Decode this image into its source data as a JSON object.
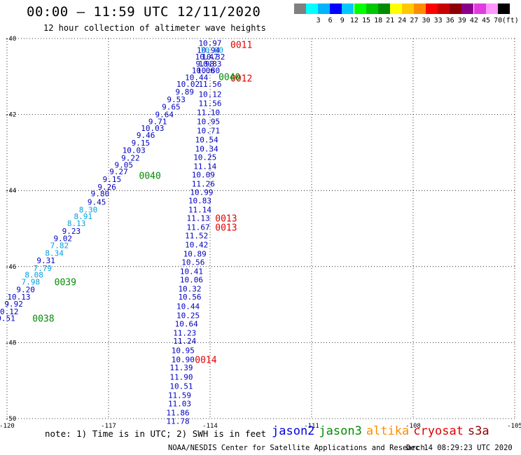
{
  "header": {
    "title": "00:00 – 11:59 UTC 12/11/2020",
    "subtitle": "12 hour collection of altimeter wave heights"
  },
  "color_scale": {
    "unit_label": "(ft)",
    "bins": [
      {
        "label": "",
        "color": "#808080"
      },
      {
        "label": "3",
        "color": "#00ffff"
      },
      {
        "label": "6",
        "color": "#00b4ff"
      },
      {
        "label": "9",
        "color": "#0000ff"
      },
      {
        "label": "12",
        "color": "#00c8ff"
      },
      {
        "label": "15",
        "color": "#00ff00"
      },
      {
        "label": "18",
        "color": "#00c800"
      },
      {
        "label": "21",
        "color": "#008c00"
      },
      {
        "label": "24",
        "color": "#ffff00"
      },
      {
        "label": "27",
        "color": "#ffc800"
      },
      {
        "label": "30",
        "color": "#ff8c00"
      },
      {
        "label": "33",
        "color": "#ff0000"
      },
      {
        "label": "36",
        "color": "#c80000"
      },
      {
        "label": "39",
        "color": "#8c0000"
      },
      {
        "label": "42",
        "color": "#8c008c"
      },
      {
        "label": "45",
        "color": "#e03ce0"
      },
      {
        "label": "70",
        "color": "#ff96ff"
      },
      {
        "label": "",
        "color": "#000000"
      }
    ]
  },
  "map": {
    "lon_ticks": [
      "-120",
      "-117",
      "-114",
      "-111",
      "-108",
      "-105"
    ],
    "lat_ticks": [
      "-40",
      "-42",
      "-44",
      "-46",
      "-48",
      "-50"
    ],
    "lon_range": [
      -120,
      -105
    ],
    "lat_range": [
      -50,
      -40
    ],
    "grid": "dotted"
  },
  "tracks": [
    {
      "name": "left-track",
      "color": "#0000c0",
      "points": [
        {
          "lon": -114.0,
          "lat": -40.12,
          "v": "10.97"
        },
        {
          "lon": -114.05,
          "lat": -40.3,
          "v": "10.94"
        },
        {
          "lon": -114.1,
          "lat": -40.48,
          "v": "10.47"
        },
        {
          "lon": -114.15,
          "lat": -40.66,
          "v": "9.98"
        },
        {
          "lon": -114.2,
          "lat": -40.84,
          "v": "10.06"
        },
        {
          "lon": -114.4,
          "lat": -41.02,
          "v": "10.44"
        },
        {
          "lon": -114.65,
          "lat": -41.2,
          "v": "10.02"
        },
        {
          "lon": -114.75,
          "lat": -41.4,
          "v": "9.89"
        },
        {
          "lon": -115.0,
          "lat": -41.6,
          "v": "9.53"
        },
        {
          "lon": -115.15,
          "lat": -41.8,
          "v": "9.65"
        },
        {
          "lon": -115.35,
          "lat": -42.0,
          "v": "9.64"
        },
        {
          "lon": -115.55,
          "lat": -42.18,
          "v": "9.71"
        },
        {
          "lon": -115.7,
          "lat": -42.36,
          "v": "10.03"
        },
        {
          "lon": -115.9,
          "lat": -42.54,
          "v": "9.46"
        },
        {
          "lon": -116.05,
          "lat": -42.74,
          "v": "9.15"
        },
        {
          "lon": -116.25,
          "lat": -42.94,
          "v": "10.03"
        },
        {
          "lon": -116.35,
          "lat": -43.14,
          "v": "9.22"
        },
        {
          "lon": -116.55,
          "lat": -43.32,
          "v": "9.05"
        },
        {
          "lon": -116.7,
          "lat": -43.5,
          "v": "9.27"
        },
        {
          "lon": -116.9,
          "lat": -43.7,
          "v": "9.15"
        },
        {
          "lon": -117.05,
          "lat": -43.9,
          "v": "9.26"
        },
        {
          "lon": -117.25,
          "lat": -44.08,
          "v": "9.80"
        },
        {
          "lon": -117.35,
          "lat": -44.3,
          "v": "9.45"
        },
        {
          "lon": -117.6,
          "lat": -44.5,
          "v": "8.30",
          "color": "#00a0e0"
        },
        {
          "lon": -117.75,
          "lat": -44.68,
          "v": "8.91",
          "color": "#00a0e0"
        },
        {
          "lon": -117.95,
          "lat": -44.86,
          "v": "8.13",
          "color": "#00a0e0"
        },
        {
          "lon": -118.1,
          "lat": -45.06,
          "v": "9.23"
        },
        {
          "lon": -118.35,
          "lat": -45.26,
          "v": "9.02"
        },
        {
          "lon": -118.45,
          "lat": -45.44,
          "v": "7.82",
          "color": "#00a0e0"
        },
        {
          "lon": -118.6,
          "lat": -45.64,
          "v": "8.34",
          "color": "#00a0e0"
        },
        {
          "lon": -118.85,
          "lat": -45.84,
          "v": "9.31"
        },
        {
          "lon": -118.95,
          "lat": -46.04,
          "v": "7.79",
          "color": "#00a0e0"
        },
        {
          "lon": -119.2,
          "lat": -46.22,
          "v": "8.08",
          "color": "#00a0e0"
        },
        {
          "lon": -119.3,
          "lat": -46.4,
          "v": "7.98",
          "color": "#00a0e0"
        },
        {
          "lon": -119.45,
          "lat": -46.6,
          "v": "9.20"
        },
        {
          "lon": -119.65,
          "lat": -46.8,
          "v": "10.13"
        },
        {
          "lon": -119.8,
          "lat": -46.98,
          "v": "9.92"
        },
        {
          "lon": -120.0,
          "lat": -47.18,
          "v": "10.12"
        },
        {
          "lon": -120.1,
          "lat": -47.36,
          "v": "10.51"
        }
      ]
    },
    {
      "name": "right-track",
      "color": "#0000c0",
      "points": [
        {
          "lon": -113.95,
          "lat": -40.3,
          "v": "10.80",
          "color": "#00a0e0"
        },
        {
          "lon": -113.9,
          "lat": -40.48,
          "v": "10.32"
        },
        {
          "lon": -114.0,
          "lat": -40.66,
          "v": "10.83"
        },
        {
          "lon": -114.05,
          "lat": -40.84,
          "v": "10.80"
        },
        {
          "lon": -114.0,
          "lat": -41.2,
          "v": "11.56"
        },
        {
          "lon": -114.0,
          "lat": -41.46,
          "v": "10.12"
        },
        {
          "lon": -114.0,
          "lat": -41.7,
          "v": "11.56"
        },
        {
          "lon": -114.05,
          "lat": -41.94,
          "v": "11.10"
        },
        {
          "lon": -114.05,
          "lat": -42.18,
          "v": "10.95"
        },
        {
          "lon": -114.05,
          "lat": -42.42,
          "v": "10.71"
        },
        {
          "lon": -114.1,
          "lat": -42.66,
          "v": "10.54"
        },
        {
          "lon": -114.1,
          "lat": -42.9,
          "v": "10.34"
        },
        {
          "lon": -114.15,
          "lat": -43.12,
          "v": "10.25"
        },
        {
          "lon": -114.15,
          "lat": -43.36,
          "v": "11.14"
        },
        {
          "lon": -114.2,
          "lat": -43.58,
          "v": "10.09"
        },
        {
          "lon": -114.2,
          "lat": -43.82,
          "v": "11.26"
        },
        {
          "lon": -114.25,
          "lat": -44.04,
          "v": "10.99"
        },
        {
          "lon": -114.3,
          "lat": -44.26,
          "v": "10.83"
        },
        {
          "lon": -114.3,
          "lat": -44.5,
          "v": "11.14"
        },
        {
          "lon": -114.35,
          "lat": -44.72,
          "v": "11.13"
        },
        {
          "lon": -114.35,
          "lat": -44.96,
          "v": "11.67"
        },
        {
          "lon": -114.4,
          "lat": -45.18,
          "v": "11.52"
        },
        {
          "lon": -114.4,
          "lat": -45.42,
          "v": "10.42"
        },
        {
          "lon": -114.45,
          "lat": -45.66,
          "v": "10.89"
        },
        {
          "lon": -114.5,
          "lat": -45.88,
          "v": "10.56"
        },
        {
          "lon": -114.55,
          "lat": -46.12,
          "v": "10.41"
        },
        {
          "lon": -114.55,
          "lat": -46.34,
          "v": "10.06"
        },
        {
          "lon": -114.6,
          "lat": -46.58,
          "v": "10.32"
        },
        {
          "lon": -114.6,
          "lat": -46.8,
          "v": "10.56"
        },
        {
          "lon": -114.65,
          "lat": -47.04,
          "v": "10.44"
        },
        {
          "lon": -114.65,
          "lat": -47.28,
          "v": "10.25"
        },
        {
          "lon": -114.7,
          "lat": -47.5,
          "v": "10.64"
        },
        {
          "lon": -114.75,
          "lat": -47.74,
          "v": "11.23"
        },
        {
          "lon": -114.75,
          "lat": -47.96,
          "v": "11.24"
        },
        {
          "lon": -114.8,
          "lat": -48.2,
          "v": "10.95"
        },
        {
          "lon": -114.8,
          "lat": -48.44,
          "v": "10.90"
        },
        {
          "lon": -114.85,
          "lat": -48.66,
          "v": "11.39"
        },
        {
          "lon": -114.85,
          "lat": -48.9,
          "v": "11.90"
        },
        {
          "lon": -114.85,
          "lat": -49.14,
          "v": "10.51"
        },
        {
          "lon": -114.9,
          "lat": -49.38,
          "v": "11.59"
        },
        {
          "lon": -114.9,
          "lat": -49.6,
          "v": "11.03"
        },
        {
          "lon": -114.95,
          "lat": -49.84,
          "v": "11.86"
        },
        {
          "lon": -114.95,
          "lat": -50.06,
          "v": "11.78"
        }
      ]
    }
  ],
  "time_labels": [
    {
      "lon": -113.4,
      "lat": -40.16,
      "v": "0011",
      "color": "#e00000"
    },
    {
      "lon": -113.4,
      "lat": -41.04,
      "v": "0012",
      "color": "#e00000"
    },
    {
      "lon": -113.75,
      "lat": -41.0,
      "v": "0040",
      "color": "#008c00"
    },
    {
      "lon": -116.1,
      "lat": -43.6,
      "v": "0040",
      "color": "#008c00"
    },
    {
      "lon": -113.85,
      "lat": -44.72,
      "v": "0013",
      "color": "#e00000"
    },
    {
      "lon": -113.85,
      "lat": -44.96,
      "v": "0013",
      "color": "#e00000"
    },
    {
      "lon": -118.6,
      "lat": -46.4,
      "v": "0039",
      "color": "#008c00"
    },
    {
      "lon": -119.25,
      "lat": -47.36,
      "v": "0038",
      "color": "#008c00"
    },
    {
      "lon": -114.45,
      "lat": -48.44,
      "v": "0014",
      "color": "#e00000"
    }
  ],
  "footer": {
    "note": "note: 1) Time is in UTC; 2) SWH is in feet",
    "satellites": [
      {
        "name": "jason2",
        "color": "#0000e0"
      },
      {
        "name": "jason3",
        "color": "#008c00"
      },
      {
        "name": "altika",
        "color": "#ff8c00"
      },
      {
        "name": "cryosat",
        "color": "#e00000"
      },
      {
        "name": "s3a",
        "color": "#8c0000"
      }
    ],
    "credit": "NOAA/NESDIS Center for Satellite Applications and Research",
    "timestamp": "Dec 14 08:29:23 UTC 2020"
  }
}
